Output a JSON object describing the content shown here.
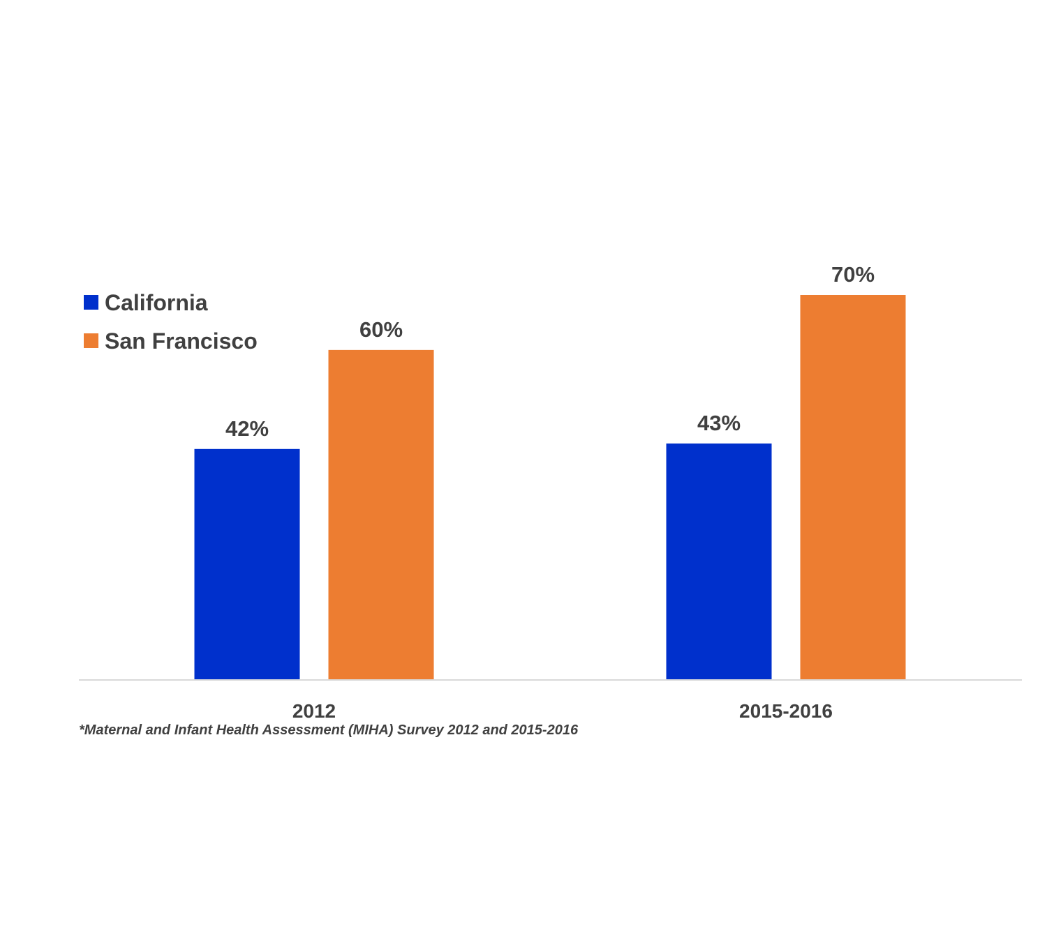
{
  "chart_data": {
    "type": "bar",
    "categories": [
      "2012",
      "2015-2016"
    ],
    "series": [
      {
        "name": "California",
        "values": [
          42,
          43
        ],
        "labels": [
          "42%",
          "43%"
        ],
        "color": "#0030CC"
      },
      {
        "name": "San Francisco",
        "values": [
          60,
          70
        ],
        "labels": [
          "60%",
          "70%"
        ],
        "color": "#ED7D31"
      }
    ],
    "ylim": [
      0,
      100
    ],
    "grid": false,
    "legend": "top-left",
    "footnote": "*Maternal and Infant Health Assessment (MIHA) Survey 2012 and 2015-2016"
  }
}
